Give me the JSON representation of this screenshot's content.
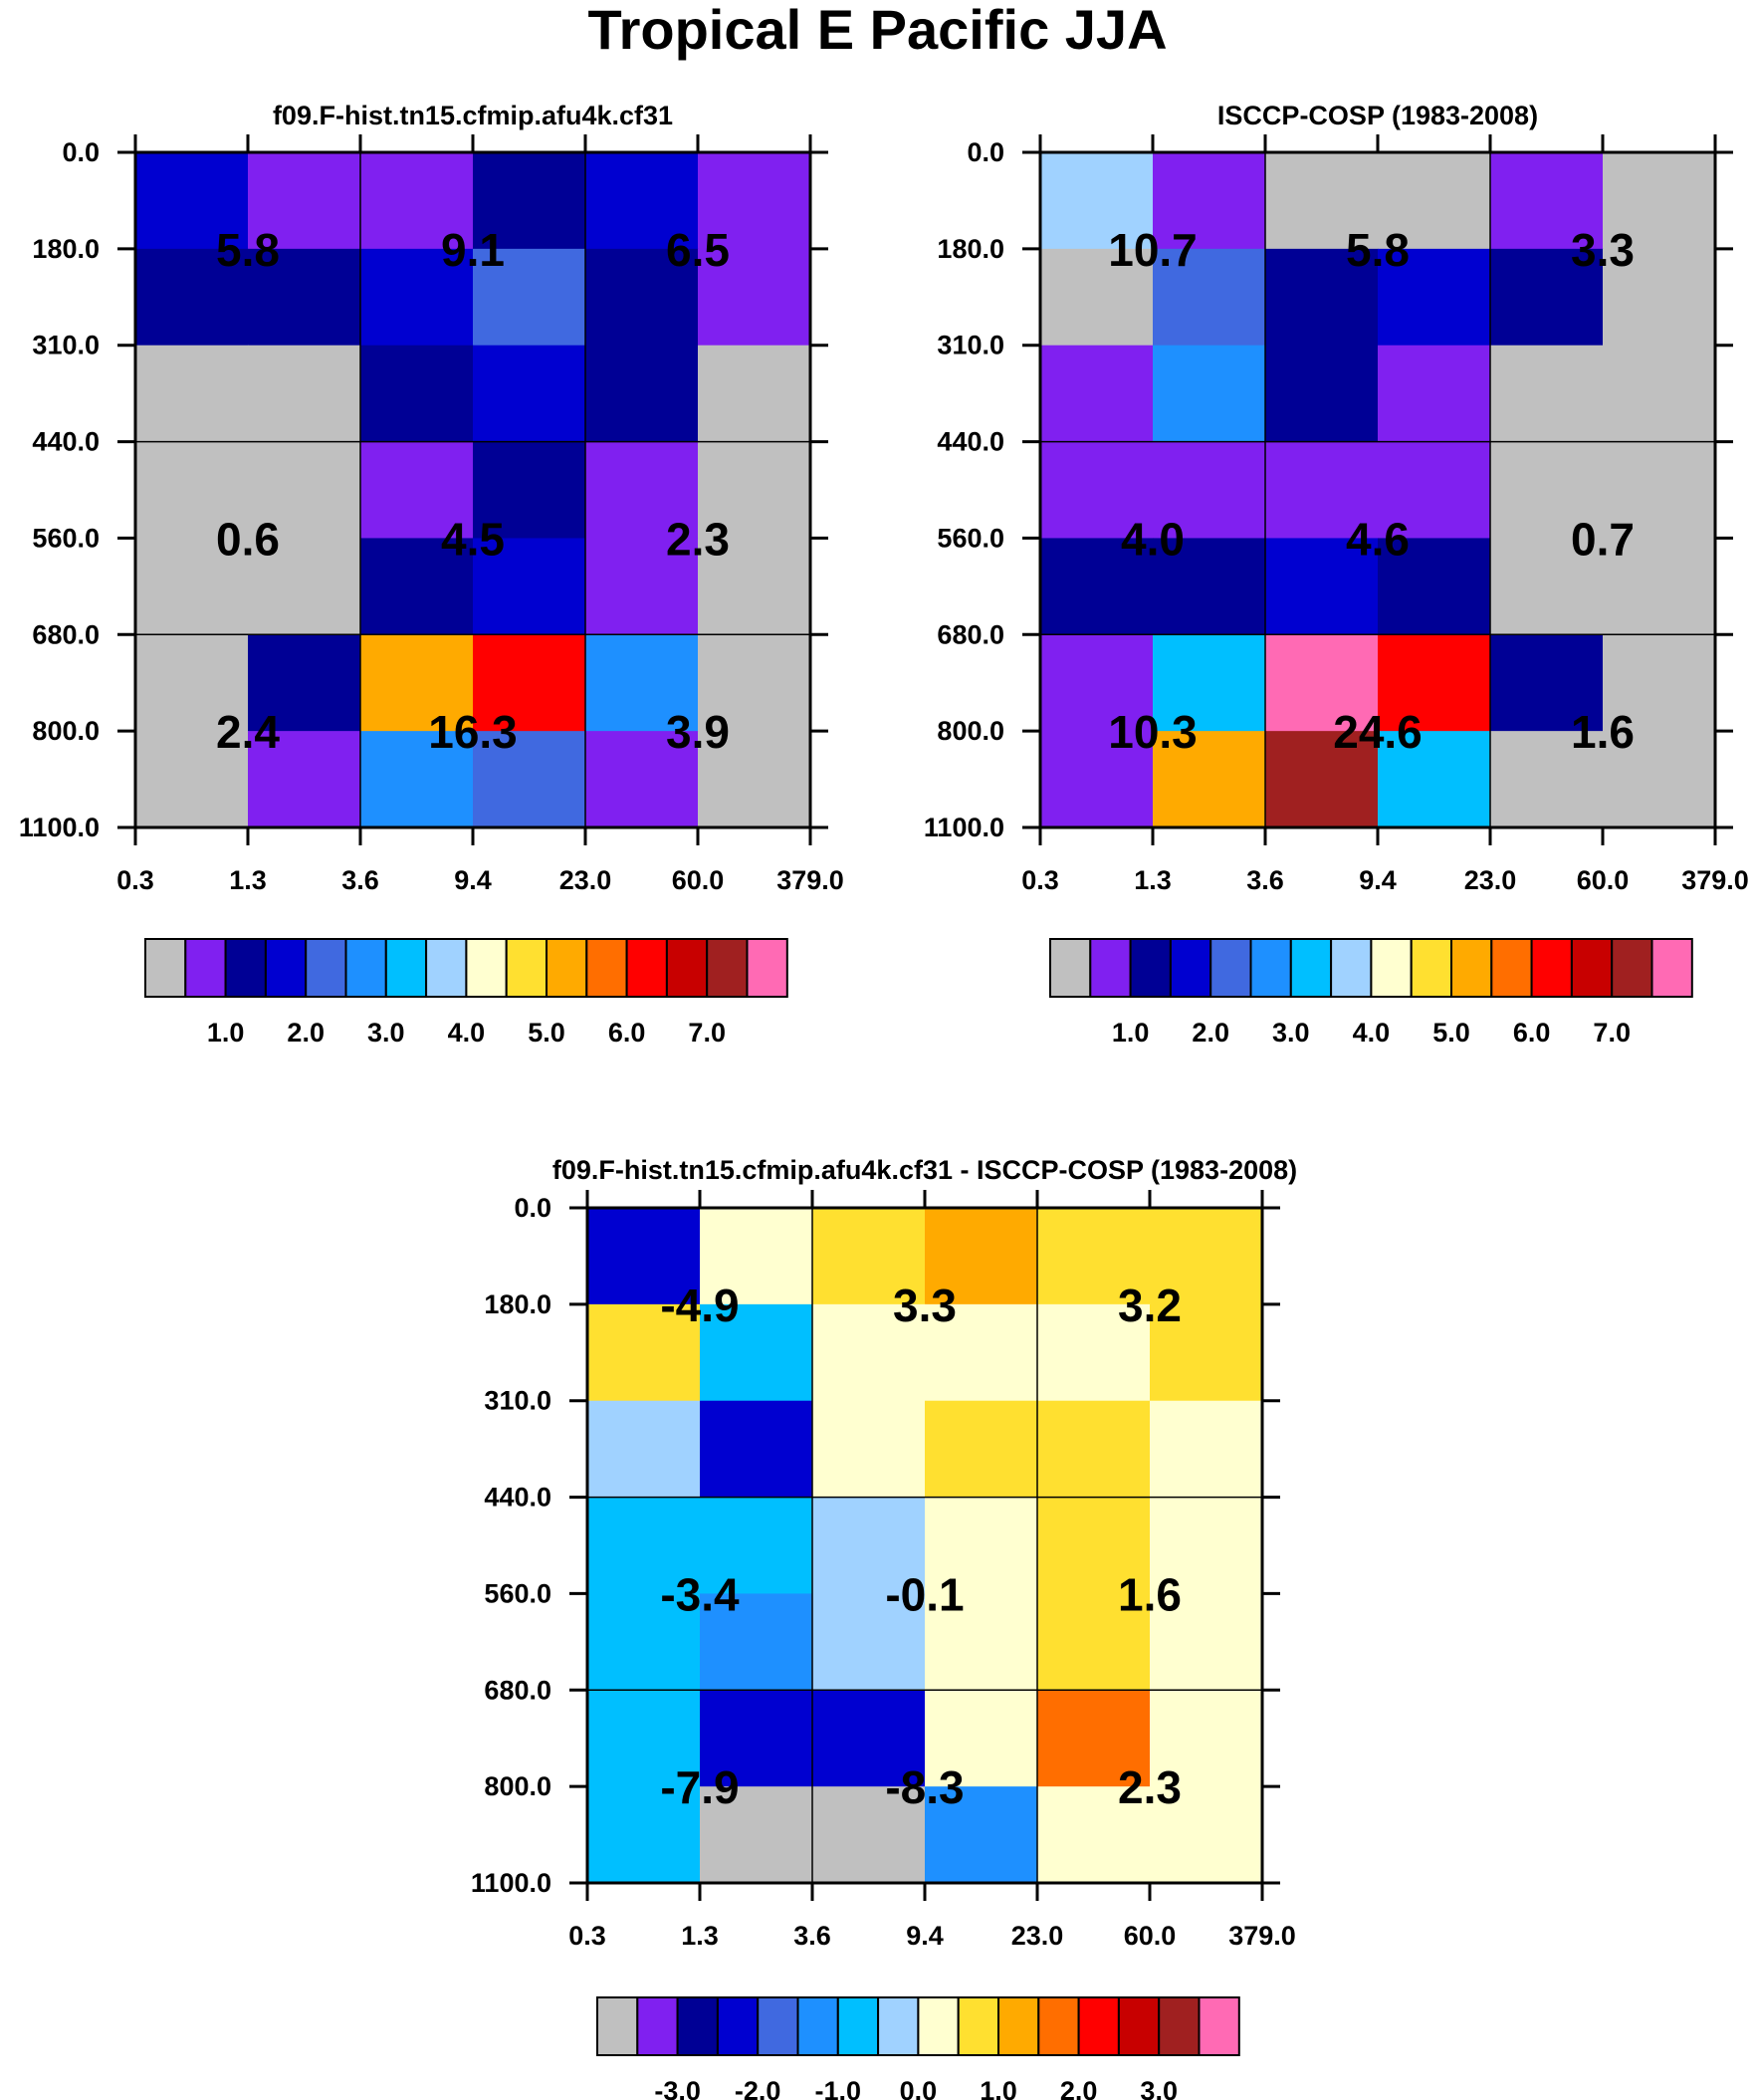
{
  "figure_title": "Tropical E Pacific JJA",
  "colors": {
    "palette": [
      "#c0c0c0",
      "#8020f0",
      "#000095",
      "#0000d0",
      "#4069e0",
      "#1e90ff",
      "#00bfff",
      "#a0d2ff",
      "#ffffd0",
      "#ffe030",
      "#ffaa00",
      "#ff6e00",
      "#ff0000",
      "#c80000",
      "#a02020",
      "#ff6ab4"
    ]
  },
  "chart_data": [
    {
      "type": "heatmap",
      "title": "f09.F-hist.tn15.cfmip.afu4k.cf31",
      "x_tick_labels": [
        "0.3",
        "1.3",
        "3.6",
        "9.4",
        "23.0",
        "60.0",
        "379.0"
      ],
      "y_tick_labels": [
        "0.0",
        "180.0",
        "310.0",
        "440.0",
        "560.0",
        "680.0",
        "800.0",
        "1100.0"
      ],
      "cell_color_index": [
        [
          3,
          1,
          1,
          2,
          3,
          1
        ],
        [
          2,
          2,
          3,
          4,
          2,
          1
        ],
        [
          0,
          0,
          2,
          3,
          2,
          0
        ],
        [
          0,
          0,
          1,
          2,
          1,
          0
        ],
        [
          0,
          0,
          2,
          3,
          1,
          0
        ],
        [
          0,
          2,
          10,
          12,
          5,
          0
        ],
        [
          0,
          1,
          5,
          4,
          1,
          0
        ]
      ],
      "group_values": [
        [
          "5.8",
          "9.1",
          "6.5"
        ],
        [
          "0.6",
          "4.5",
          "2.3"
        ],
        [
          "2.4",
          "16.3",
          "3.9"
        ]
      ],
      "colorbar_labels": [
        "1.0",
        "2.0",
        "3.0",
        "4.0",
        "5.0",
        "6.0",
        "7.0"
      ]
    },
    {
      "type": "heatmap",
      "title": "ISCCP-COSP (1983-2008)",
      "x_tick_labels": [
        "0.3",
        "1.3",
        "3.6",
        "9.4",
        "23.0",
        "60.0",
        "379.0"
      ],
      "y_tick_labels": [
        "0.0",
        "180.0",
        "310.0",
        "440.0",
        "560.0",
        "680.0",
        "800.0",
        "1100.0"
      ],
      "cell_color_index": [
        [
          7,
          1,
          0,
          0,
          1,
          0
        ],
        [
          0,
          4,
          2,
          3,
          2,
          0
        ],
        [
          1,
          5,
          2,
          1,
          0,
          0
        ],
        [
          1,
          1,
          1,
          1,
          0,
          0
        ],
        [
          2,
          2,
          3,
          2,
          0,
          0
        ],
        [
          1,
          6,
          15,
          12,
          2,
          0
        ],
        [
          1,
          10,
          14,
          6,
          0,
          0
        ]
      ],
      "group_values": [
        [
          "10.7",
          "5.8",
          "3.3"
        ],
        [
          "4.0",
          "4.6",
          "0.7"
        ],
        [
          "10.3",
          "24.6",
          "1.6"
        ]
      ],
      "colorbar_labels": [
        "1.0",
        "2.0",
        "3.0",
        "4.0",
        "5.0",
        "6.0",
        "7.0"
      ]
    },
    {
      "type": "heatmap",
      "title": "f09.F-hist.tn15.cfmip.afu4k.cf31 - ISCCP-COSP (1983-2008)",
      "x_tick_labels": [
        "0.3",
        "1.3",
        "3.6",
        "9.4",
        "23.0",
        "60.0",
        "379.0"
      ],
      "y_tick_labels": [
        "0.0",
        "180.0",
        "310.0",
        "440.0",
        "560.0",
        "680.0",
        "800.0",
        "1100.0"
      ],
      "cell_color_index": [
        [
          3,
          8,
          9,
          10,
          9,
          9
        ],
        [
          9,
          6,
          8,
          8,
          8,
          9
        ],
        [
          7,
          3,
          8,
          9,
          9,
          8
        ],
        [
          6,
          6,
          7,
          8,
          9,
          8
        ],
        [
          6,
          5,
          7,
          8,
          9,
          8
        ],
        [
          6,
          3,
          3,
          8,
          11,
          8
        ],
        [
          6,
          0,
          0,
          5,
          8,
          8
        ]
      ],
      "group_values": [
        [
          "-4.9",
          "3.3",
          "3.2"
        ],
        [
          "-3.4",
          "-0.1",
          "1.6"
        ],
        [
          "-7.9",
          "-8.3",
          "2.3"
        ]
      ],
      "colorbar_labels": [
        "-3.0",
        "-2.0",
        "-1.0",
        "0.0",
        "1.0",
        "2.0",
        "3.0"
      ]
    }
  ]
}
